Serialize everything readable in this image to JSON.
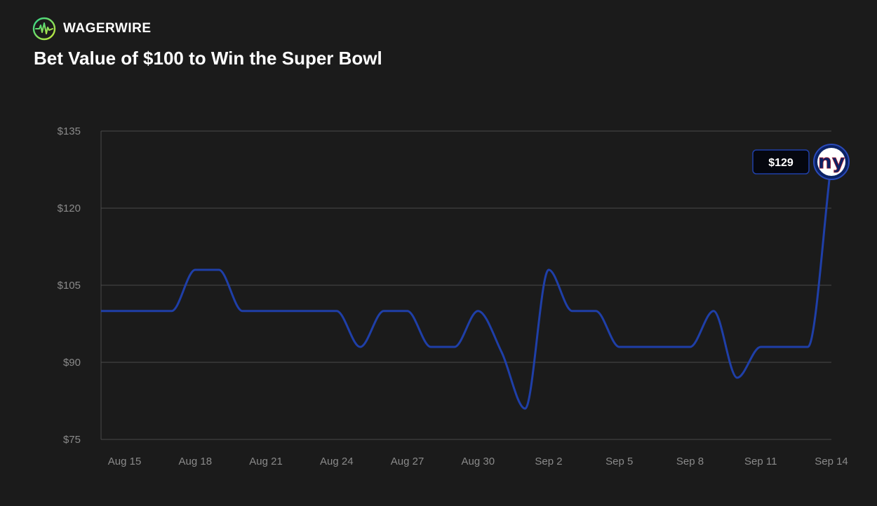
{
  "brand": {
    "name": "WAGERWIRE",
    "logo_icon": "pulse-circle-icon"
  },
  "title": "Bet Value of $100 to Win the Super Bowl",
  "colors": {
    "background": "#1b1b1b",
    "line": "#1f3fa8",
    "grid": "#4a4a4a",
    "tick_text": "#8a8a8a",
    "team_badge": "#0b2265",
    "team_accent": "#a71930"
  },
  "chart_data": {
    "type": "line",
    "title": "Bet Value of $100 to Win the Super Bowl",
    "xlabel": "",
    "ylabel": "",
    "ylim": [
      75,
      135
    ],
    "yticks": [
      75,
      90,
      105,
      120,
      135
    ],
    "ytick_labels": [
      "$75",
      "$90",
      "$105",
      "$120",
      "$135"
    ],
    "xticks": [
      "Aug 15",
      "Aug 18",
      "Aug 21",
      "Aug 24",
      "Aug 27",
      "Aug 30",
      "Sep 2",
      "Sep 5",
      "Sep 8",
      "Sep 11",
      "Sep 14"
    ],
    "grid": true,
    "series": [
      {
        "values": [
          [
            "Aug 14",
            100
          ],
          [
            "Aug 17",
            100
          ],
          [
            "Aug 18",
            108
          ],
          [
            "Aug 19",
            108
          ],
          [
            "Aug 20",
            100
          ],
          [
            "Aug 24",
            100
          ],
          [
            "Aug 25",
            93
          ],
          [
            "Aug 26",
            100
          ],
          [
            "Aug 27",
            100
          ],
          [
            "Aug 28",
            93
          ],
          [
            "Aug 29",
            93
          ],
          [
            "Aug 30",
            100
          ],
          [
            "Aug 31",
            92
          ],
          [
            "Sep 1",
            81
          ],
          [
            "Sep 2",
            108
          ],
          [
            "Sep 3",
            100
          ],
          [
            "Sep 4",
            100
          ],
          [
            "Sep 5",
            93
          ],
          [
            "Sep 8",
            93
          ],
          [
            "Sep 9",
            100
          ],
          [
            "Sep 10",
            87
          ],
          [
            "Sep 11",
            93
          ],
          [
            "Sep 13",
            93
          ],
          [
            "Sep 14",
            129
          ]
        ]
      }
    ],
    "annotation": {
      "label": "$129",
      "team_logo_text": "ny",
      "team_logo_icon": "new-york-giants-logo"
    }
  }
}
